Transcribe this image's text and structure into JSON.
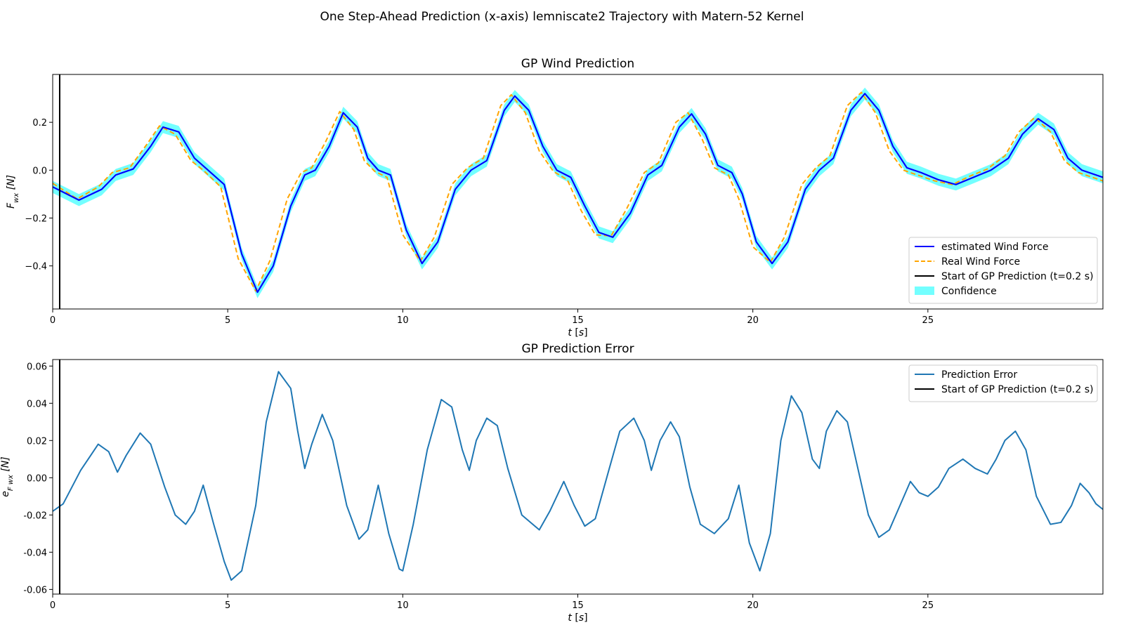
{
  "figure": {
    "suptitle": "One Step-Ahead Prediction (x-axis) lemniscate2 Trajectory with Matern-52 Kernel"
  },
  "chart_data": [
    {
      "type": "line",
      "title": "GP Wind Prediction",
      "xlabel": "t [s]",
      "ylabel": "F_wx [N]",
      "xlim": [
        0,
        30
      ],
      "ylim": [
        -0.58,
        0.4
      ],
      "xticks": [
        0,
        5,
        10,
        15,
        20,
        25
      ],
      "yticks": [
        -0.4,
        -0.2,
        0.0,
        0.2
      ],
      "ytick_labels": [
        "−0.4",
        "−0.2",
        "0.0",
        "0.2"
      ],
      "grid": false,
      "legend_position": "lower-right",
      "vline": {
        "x": 0.2,
        "label": "Start of GP Prediction (t=0.2 s)",
        "color": "#000000"
      },
      "series": [
        {
          "name": "estimated Wind Force",
          "style": "solid",
          "color": "#0000ff",
          "band_halfwidth": 0.025,
          "band_label": "Confidence",
          "band_color": "#00ffff",
          "x": [
            0,
            0.75,
            1.4,
            1.8,
            2.3,
            2.8,
            3.15,
            3.6,
            4.05,
            4.4,
            4.9,
            5.4,
            5.85,
            6.3,
            6.8,
            7.2,
            7.5,
            7.9,
            8.3,
            8.7,
            9.0,
            9.3,
            9.65,
            10.1,
            10.55,
            11.0,
            11.5,
            11.95,
            12.4,
            12.9,
            13.2,
            13.6,
            14.0,
            14.4,
            14.8,
            15.2,
            15.6,
            16.0,
            16.5,
            17.0,
            17.4,
            17.9,
            18.25,
            18.65,
            19.0,
            19.4,
            19.7,
            20.1,
            20.55,
            21.0,
            21.5,
            21.9,
            22.3,
            22.8,
            23.2,
            23.6,
            24.0,
            24.4,
            24.8,
            25.3,
            25.8,
            26.3,
            26.8,
            27.3,
            27.7,
            28.15,
            28.6,
            29.0,
            29.4,
            30.0
          ],
          "y": [
            -0.07,
            -0.125,
            -0.08,
            -0.02,
            0.005,
            0.1,
            0.18,
            0.16,
            0.05,
            0.005,
            -0.06,
            -0.35,
            -0.51,
            -0.4,
            -0.15,
            -0.02,
            0.0,
            0.1,
            0.24,
            0.18,
            0.05,
            0.0,
            -0.02,
            -0.25,
            -0.39,
            -0.3,
            -0.08,
            0.0,
            0.04,
            0.25,
            0.31,
            0.25,
            0.1,
            0.0,
            -0.03,
            -0.15,
            -0.26,
            -0.28,
            -0.18,
            -0.02,
            0.02,
            0.18,
            0.235,
            0.15,
            0.02,
            -0.01,
            -0.1,
            -0.3,
            -0.39,
            -0.3,
            -0.08,
            0.0,
            0.05,
            0.25,
            0.32,
            0.25,
            0.1,
            0.01,
            -0.01,
            -0.04,
            -0.06,
            -0.03,
            0.0,
            0.05,
            0.15,
            0.215,
            0.17,
            0.05,
            0.0,
            -0.03
          ]
        },
        {
          "name": "Real Wind Force",
          "style": "dashed",
          "color": "#ffa500",
          "x": [
            0,
            0.7,
            1.3,
            1.7,
            2.2,
            2.7,
            3.05,
            3.5,
            3.95,
            4.3,
            4.8,
            5.3,
            5.8,
            6.2,
            6.7,
            7.1,
            7.4,
            7.8,
            8.2,
            8.6,
            8.9,
            9.2,
            9.55,
            10.0,
            10.5,
            10.9,
            11.4,
            11.85,
            12.3,
            12.8,
            13.1,
            13.5,
            13.9,
            14.3,
            14.7,
            15.1,
            15.5,
            15.95,
            16.4,
            16.9,
            17.3,
            17.8,
            18.15,
            18.55,
            18.9,
            19.3,
            19.6,
            20.0,
            20.5,
            20.9,
            21.4,
            21.8,
            22.2,
            22.7,
            23.1,
            23.5,
            23.9,
            24.3,
            24.7,
            25.2,
            25.7,
            26.2,
            26.7,
            27.2,
            27.6,
            28.05,
            28.5,
            28.9,
            29.3,
            30.0
          ],
          "y": [
            -0.055,
            -0.12,
            -0.07,
            -0.01,
            0.01,
            0.11,
            0.185,
            0.15,
            0.04,
            0.0,
            -0.07,
            -0.37,
            -0.505,
            -0.38,
            -0.12,
            -0.01,
            0.01,
            0.12,
            0.245,
            0.17,
            0.04,
            -0.005,
            -0.03,
            -0.27,
            -0.38,
            -0.28,
            -0.06,
            0.01,
            0.05,
            0.27,
            0.315,
            0.24,
            0.08,
            -0.005,
            -0.04,
            -0.17,
            -0.27,
            -0.275,
            -0.16,
            -0.01,
            0.03,
            0.2,
            0.24,
            0.13,
            0.01,
            -0.02,
            -0.12,
            -0.32,
            -0.385,
            -0.28,
            -0.06,
            0.01,
            0.06,
            0.27,
            0.325,
            0.24,
            0.08,
            0.0,
            -0.02,
            -0.045,
            -0.06,
            -0.025,
            0.005,
            0.06,
            0.16,
            0.22,
            0.16,
            0.04,
            -0.01,
            -0.045
          ]
        }
      ]
    },
    {
      "type": "line",
      "title": "GP Prediction Error",
      "xlabel": "t [s]",
      "ylabel": "e_F_wx [N]",
      "xlim": [
        0,
        30
      ],
      "ylim": [
        -0.0625,
        0.0635
      ],
      "xticks": [
        0,
        5,
        10,
        15,
        20,
        25
      ],
      "yticks": [
        -0.06,
        -0.04,
        -0.02,
        0.0,
        0.02,
        0.04,
        0.06
      ],
      "ytick_labels": [
        "-0.06",
        "-0.04",
        "-0.02",
        "0.00",
        "0.02",
        "0.04",
        "0.06"
      ],
      "grid": false,
      "legend_position": "upper-right",
      "vline": {
        "x": 0.2,
        "label": "Start of GP Prediction (t=0.2 s)",
        "color": "#000000"
      },
      "series": [
        {
          "name": "Prediction Error",
          "style": "solid",
          "color": "#1f77b4",
          "x": [
            0,
            0.3,
            0.8,
            1.3,
            1.6,
            1.85,
            2.1,
            2.5,
            2.8,
            3.2,
            3.5,
            3.8,
            4.05,
            4.3,
            4.6,
            4.9,
            5.1,
            5.4,
            5.8,
            6.1,
            6.45,
            6.8,
            7.0,
            7.2,
            7.4,
            7.7,
            8.0,
            8.4,
            8.75,
            9.0,
            9.3,
            9.6,
            9.9,
            10.0,
            10.3,
            10.7,
            11.1,
            11.4,
            11.7,
            11.9,
            12.1,
            12.4,
            12.7,
            13.0,
            13.4,
            13.9,
            14.2,
            14.6,
            14.9,
            15.2,
            15.5,
            15.9,
            16.2,
            16.6,
            16.9,
            17.1,
            17.35,
            17.65,
            17.9,
            18.2,
            18.5,
            18.9,
            19.3,
            19.6,
            19.9,
            20.2,
            20.5,
            20.8,
            21.1,
            21.4,
            21.7,
            21.9,
            22.1,
            22.4,
            22.7,
            23.0,
            23.3,
            23.6,
            23.9,
            24.2,
            24.5,
            24.75,
            25.0,
            25.3,
            25.6,
            26.0,
            26.35,
            26.7,
            26.95,
            27.2,
            27.5,
            27.8,
            28.1,
            28.5,
            28.8,
            29.1,
            29.35,
            29.6,
            29.8,
            30.0
          ],
          "y": [
            -0.018,
            -0.014,
            0.004,
            0.018,
            0.014,
            0.003,
            0.012,
            0.024,
            0.018,
            -0.005,
            -0.02,
            -0.025,
            -0.018,
            -0.004,
            -0.025,
            -0.045,
            -0.055,
            -0.05,
            -0.015,
            0.03,
            0.057,
            0.048,
            0.025,
            0.005,
            0.018,
            0.034,
            0.02,
            -0.015,
            -0.033,
            -0.028,
            -0.004,
            -0.03,
            -0.049,
            -0.05,
            -0.025,
            0.015,
            0.042,
            0.038,
            0.015,
            0.004,
            0.02,
            0.032,
            0.028,
            0.005,
            -0.02,
            -0.028,
            -0.018,
            -0.002,
            -0.015,
            -0.026,
            -0.022,
            0.005,
            0.025,
            0.032,
            0.02,
            0.004,
            0.02,
            0.03,
            0.022,
            -0.005,
            -0.025,
            -0.03,
            -0.022,
            -0.004,
            -0.035,
            -0.05,
            -0.03,
            0.02,
            0.044,
            0.035,
            0.01,
            0.005,
            0.025,
            0.036,
            0.03,
            0.005,
            -0.02,
            -0.032,
            -0.028,
            -0.015,
            -0.002,
            -0.008,
            -0.01,
            -0.005,
            0.005,
            0.01,
            0.005,
            0.002,
            0.01,
            0.02,
            0.025,
            0.015,
            -0.01,
            -0.025,
            -0.024,
            -0.015,
            -0.003,
            -0.008,
            -0.014,
            -0.017
          ]
        }
      ]
    }
  ]
}
